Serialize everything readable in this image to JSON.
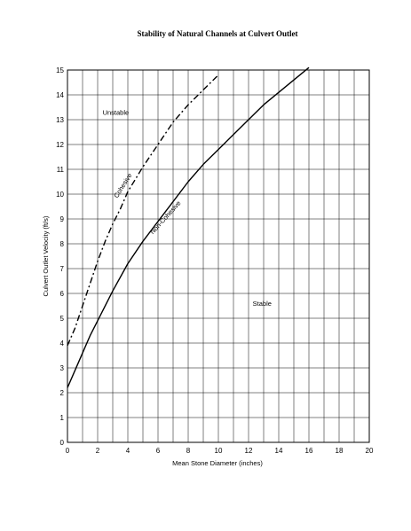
{
  "chart_data": {
    "type": "line",
    "title": "Stability of Natural Channels at Culvert Outlet",
    "xlabel": "Mean Stone Diameter (inches)",
    "ylabel": "Culvert Outlet Velocity (ft/s)",
    "xlim": [
      0,
      20
    ],
    "ylim": [
      0,
      15
    ],
    "x_ticks": [
      0,
      2,
      4,
      6,
      8,
      10,
      12,
      14,
      16,
      18,
      20
    ],
    "y_ticks": [
      0,
      1,
      2,
      3,
      4,
      5,
      6,
      7,
      8,
      9,
      10,
      11,
      12,
      13,
      14,
      15
    ],
    "grid": true,
    "series": [
      {
        "name": "Cohesive",
        "style": "dash-dot",
        "x": [
          0,
          0.5,
          1,
          1.5,
          2,
          2.5,
          3,
          3.5,
          4,
          5,
          6,
          7,
          8,
          9,
          10
        ],
        "y": [
          3.9,
          4.6,
          5.5,
          6.4,
          7.3,
          8.1,
          8.8,
          9.4,
          10.1,
          11.1,
          12.0,
          12.9,
          13.6,
          14.2,
          14.8
        ]
      },
      {
        "name": "Non-Cohesive",
        "style": "solid",
        "x": [
          0,
          0.5,
          1,
          1.5,
          2,
          3,
          4,
          5,
          6,
          7,
          8,
          9,
          10,
          11,
          12,
          13,
          14,
          15,
          16
        ],
        "y": [
          2.2,
          2.9,
          3.6,
          4.3,
          4.9,
          6.1,
          7.2,
          8.1,
          8.9,
          9.7,
          10.5,
          11.2,
          11.8,
          12.4,
          13.0,
          13.6,
          14.1,
          14.6,
          15.1
        ]
      }
    ],
    "annotations": [
      {
        "text": "Unstable",
        "x": 3.2,
        "y": 13.2,
        "rotate": 0
      },
      {
        "text": "Stable",
        "x": 12.9,
        "y": 5.5,
        "rotate": 0
      },
      {
        "text": "Cohesive",
        "x": 3.8,
        "y": 10.3,
        "rotate": -58
      },
      {
        "text": "Non-Cohesive",
        "x": 6.6,
        "y": 9.0,
        "rotate": -48
      }
    ]
  }
}
